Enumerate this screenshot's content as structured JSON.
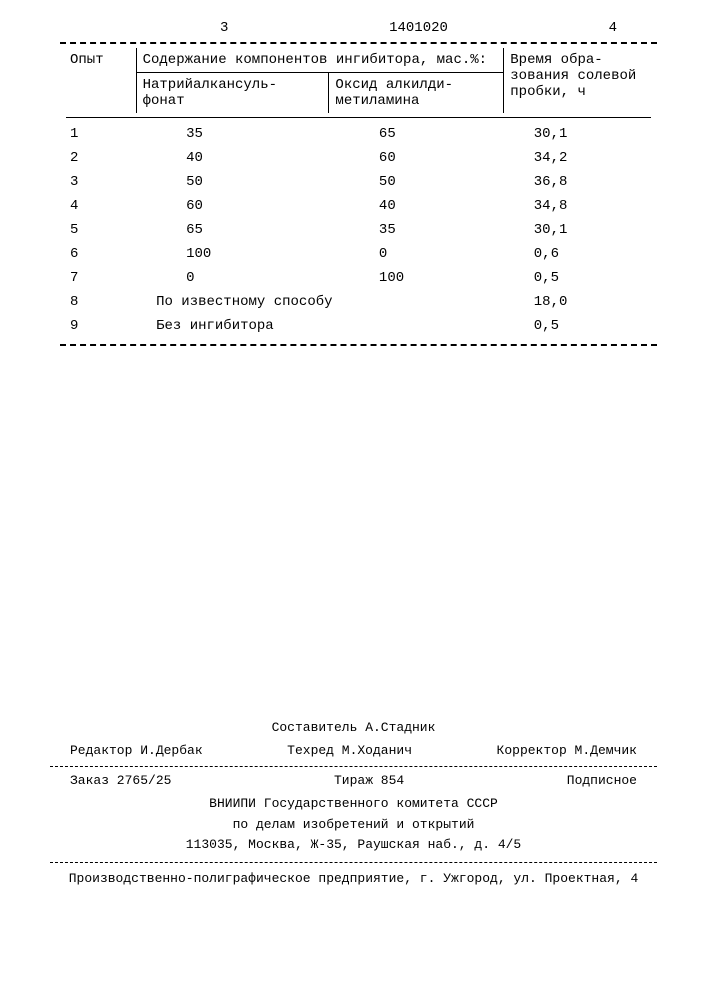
{
  "doc_number": "1401020",
  "page_left": "3",
  "page_right": "4",
  "table": {
    "columns": {
      "opyt": "Опыт",
      "content_group": "Содержание компонентов ингибитора, мас.%:",
      "sub1": "Натрийалкансуль-\nфонат",
      "sub2": "Оксид алкилди-\nметиламина",
      "time": "Время обра-\nзования солевой\nпробки, ч"
    },
    "rows": [
      {
        "n": "1",
        "a": "35",
        "b": "65",
        "t": "30,1"
      },
      {
        "n": "2",
        "a": "40",
        "b": "60",
        "t": "34,2"
      },
      {
        "n": "3",
        "a": "50",
        "b": "50",
        "t": "36,8"
      },
      {
        "n": "4",
        "a": "60",
        "b": "40",
        "t": "34,8"
      },
      {
        "n": "5",
        "a": "65",
        "b": "35",
        "t": "30,1"
      },
      {
        "n": "6",
        "a": "100",
        "b": "0",
        "t": "0,6"
      },
      {
        "n": "7",
        "a": "0",
        "b": "100",
        "t": "0,5"
      },
      {
        "n": "8",
        "span": "По известному способу",
        "t": "18,0"
      },
      {
        "n": "9",
        "span": "Без ингибитора",
        "t": "0,5"
      }
    ]
  },
  "footer": {
    "compiler": "Составитель А.Стадник",
    "editor": "Редактор И.Дербак",
    "techred": "Техред М.Ходанич",
    "corrector": "Корректор М.Демчик",
    "order": "Заказ 2765/25",
    "tirage": "Тираж 854",
    "subscription": "Подписное",
    "org1": "ВНИИПИ Государственного комитета СССР",
    "org2": "по делам изобретений и открытий",
    "addr": "113035, Москва, Ж-35, Раушская наб., д. 4/5",
    "printer": "Производственно-полиграфическое предприятие, г. Ужгород, ул. Проектная, 4"
  }
}
